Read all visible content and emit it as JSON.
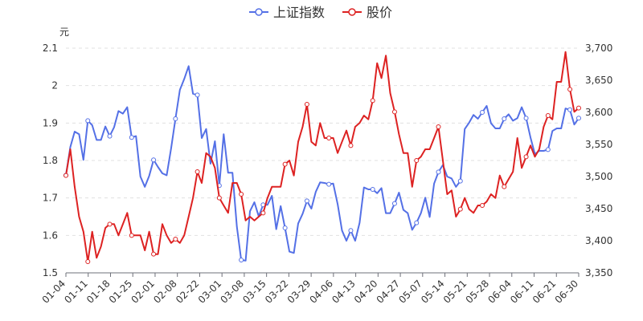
{
  "chart_data": {
    "type": "line",
    "legend": [
      "上证指数",
      "股价"
    ],
    "legend_position": "top-center",
    "left_axis_unit": "元",
    "left_axis": {
      "min": 1.5,
      "max": 2.1,
      "ticks": [
        "1.5",
        "1.6",
        "1.7",
        "1.8",
        "1.9",
        "2",
        "2.1"
      ]
    },
    "right_axis": {
      "min": 3350,
      "max": 3700,
      "ticks": [
        "3,350",
        "3,400",
        "3,450",
        "3,500",
        "3,550",
        "3,600",
        "3,650",
        "3,700"
      ]
    },
    "grid": "horizontal dashed",
    "x_tick_labels": [
      "01-04",
      "01-11",
      "01-18",
      "01-25",
      "02-01",
      "02-08",
      "02-22",
      "03-01",
      "03-08",
      "03-15",
      "03-22",
      "03-29",
      "04-06",
      "04-13",
      "04-20",
      "04-27",
      "05-07",
      "05-14",
      "05-21",
      "05-28",
      "06-04",
      "06-11",
      "06-21",
      "06-30"
    ],
    "colors": {
      "index": "#5470e6",
      "price": "#dd2222"
    },
    "series": [
      {
        "name": "上证指数",
        "axis": "right",
        "values": [
          3502,
          3546,
          3570,
          3566,
          3526,
          3587,
          3580,
          3557,
          3557,
          3578,
          3563,
          3577,
          3602,
          3598,
          3608,
          3561,
          3563,
          3500,
          3484,
          3501,
          3526,
          3515,
          3505,
          3502,
          3544,
          3590,
          3635,
          3652,
          3672,
          3629,
          3627,
          3560,
          3574,
          3520,
          3555,
          3486,
          3566,
          3506,
          3506,
          3422,
          3370,
          3369,
          3446,
          3460,
          3438,
          3456,
          3456,
          3470,
          3418,
          3454,
          3420,
          3383,
          3381,
          3427,
          3442,
          3462,
          3450,
          3476,
          3491,
          3490,
          3488,
          3489,
          3457,
          3416,
          3400,
          3416,
          3400,
          3428,
          3483,
          3480,
          3480,
          3474,
          3482,
          3443,
          3443,
          3458,
          3475,
          3448,
          3443,
          3417,
          3428,
          3443,
          3467,
          3437,
          3489,
          3507,
          3518,
          3500,
          3497,
          3484,
          3493,
          3574,
          3584,
          3596,
          3590,
          3600,
          3610,
          3583,
          3575,
          3575,
          3590,
          3597,
          3587,
          3591,
          3608,
          3591,
          3561,
          3535,
          3540,
          3540,
          3542,
          3571,
          3575,
          3575,
          3606,
          3604,
          3581,
          3591
        ]
      },
      {
        "name": "股价",
        "axis": "left",
        "values": [
          1.76,
          1.83,
          1.73,
          1.65,
          1.61,
          1.53,
          1.61,
          1.54,
          1.57,
          1.62,
          1.63,
          1.63,
          1.6,
          1.63,
          1.66,
          1.6,
          1.6,
          1.6,
          1.56,
          1.61,
          1.55,
          1.55,
          1.63,
          1.6,
          1.58,
          1.59,
          1.58,
          1.6,
          1.65,
          1.7,
          1.77,
          1.74,
          1.82,
          1.81,
          1.78,
          1.7,
          1.68,
          1.66,
          1.74,
          1.74,
          1.71,
          1.64,
          1.65,
          1.64,
          1.65,
          1.66,
          1.7,
          1.73,
          1.73,
          1.73,
          1.79,
          1.8,
          1.76,
          1.85,
          1.89,
          1.95,
          1.85,
          1.84,
          1.9,
          1.86,
          1.86,
          1.86,
          1.82,
          1.85,
          1.88,
          1.84,
          1.89,
          1.9,
          1.92,
          1.91,
          1.96,
          2.06,
          2.02,
          2.08,
          1.98,
          1.93,
          1.87,
          1.82,
          1.82,
          1.73,
          1.8,
          1.81,
          1.83,
          1.83,
          1.86,
          1.89,
          1.8,
          1.71,
          1.72,
          1.65,
          1.67,
          1.7,
          1.67,
          1.66,
          1.68,
          1.68,
          1.69,
          1.71,
          1.7,
          1.76,
          1.73,
          1.75,
          1.77,
          1.86,
          1.78,
          1.81,
          1.84,
          1.81,
          1.83,
          1.89,
          1.92,
          1.91,
          2.01,
          2.01,
          2.09,
          1.99,
          1.93,
          1.94
        ]
      }
    ],
    "marked_points": [
      0,
      5,
      10,
      15,
      20,
      25,
      30,
      35,
      40,
      45,
      50,
      55,
      60,
      65,
      70,
      75,
      80,
      85,
      90,
      95,
      100,
      105,
      110,
      115,
      117
    ]
  }
}
